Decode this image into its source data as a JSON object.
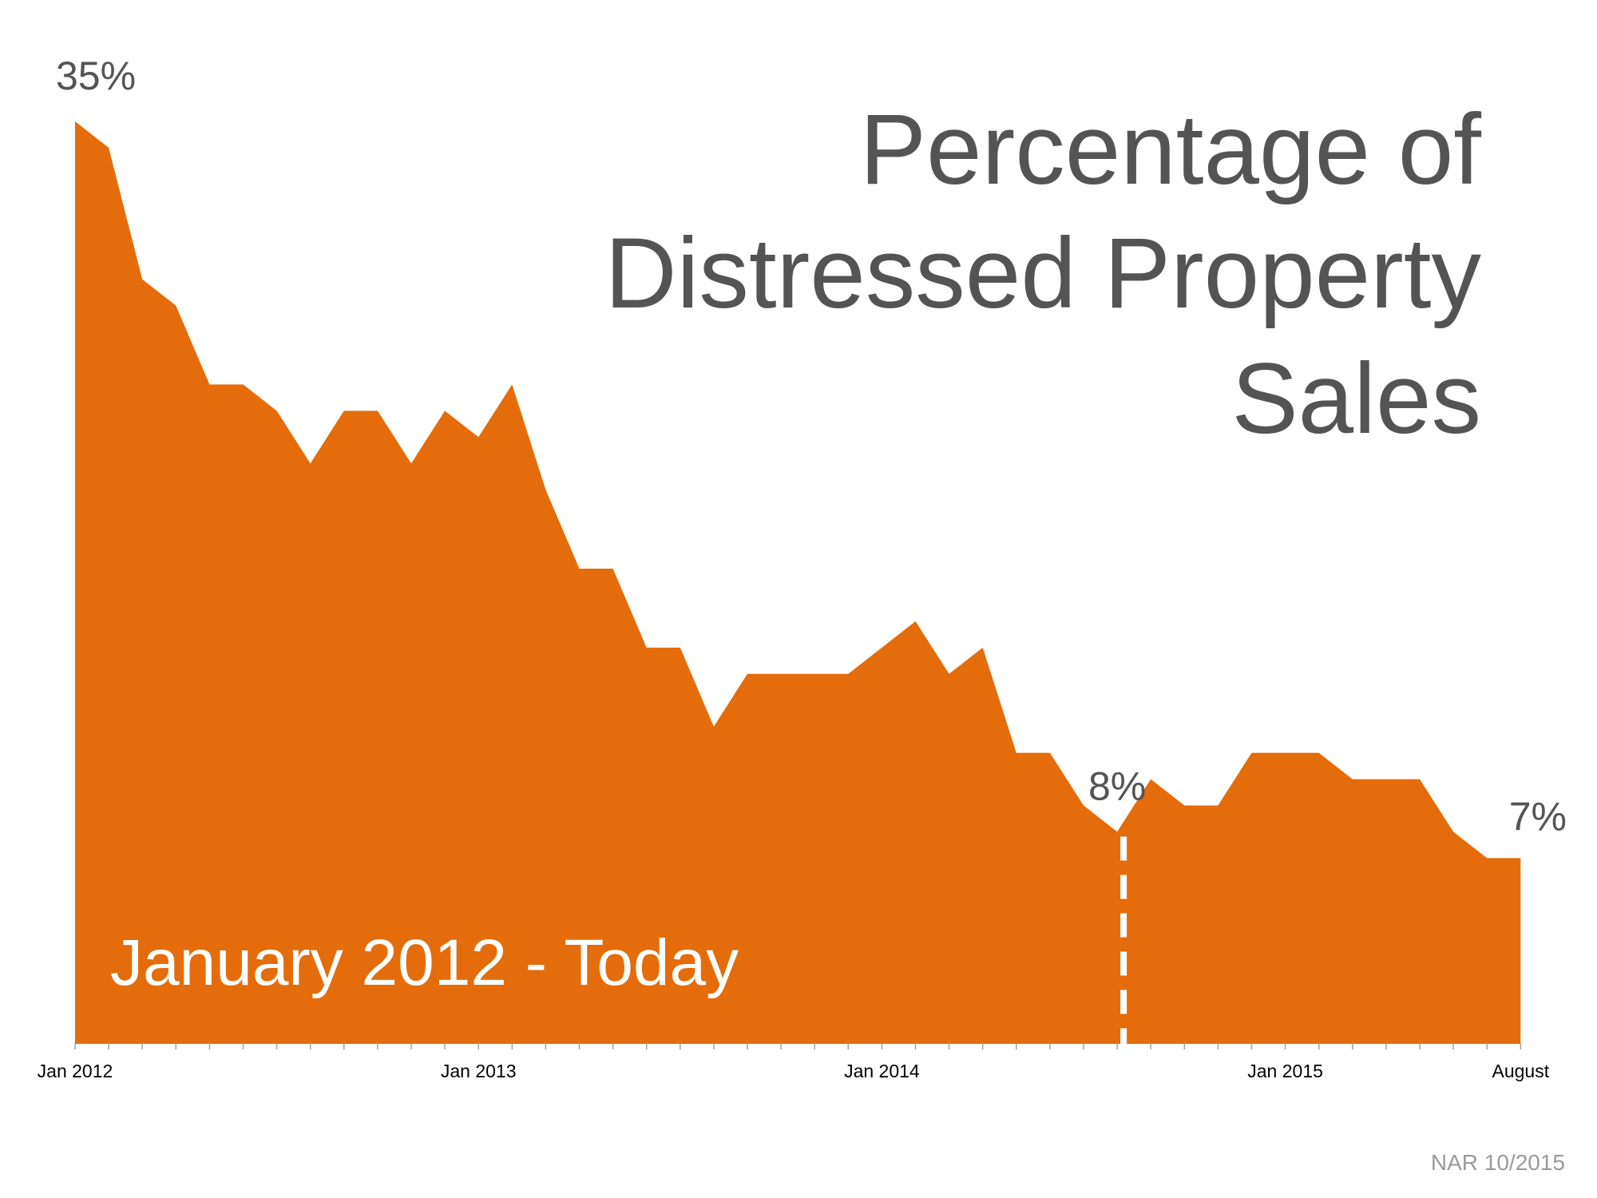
{
  "chart_data": {
    "type": "area",
    "title_lines": [
      "Percentage of",
      "Distressed Property",
      "Sales"
    ],
    "subtitle": "January 2012 - Today",
    "source": "NAR 10/2015",
    "xlabel": "",
    "ylabel": "",
    "x_tick_labels": [
      "Jan 2012",
      "Jan 2013",
      "Jan 2014",
      "Jan 2015",
      "August"
    ],
    "x_tick_label_index": [
      0,
      12,
      24,
      36,
      43
    ],
    "n_points": 44,
    "ylim": [
      0,
      35
    ],
    "values": [
      35,
      34,
      29,
      28,
      25,
      25,
      24,
      22,
      24,
      24,
      22,
      24,
      23,
      25,
      21,
      18,
      18,
      15,
      15,
      12,
      14,
      14,
      14,
      14,
      15,
      16,
      14,
      15,
      11,
      11,
      9,
      8,
      10,
      9,
      9,
      11,
      11,
      11,
      10,
      10,
      10,
      8,
      7,
      7
    ],
    "annotations": [
      {
        "index": 0,
        "text": "35%"
      },
      {
        "index": 31,
        "text": "8%"
      },
      {
        "index": 43,
        "text": "7%"
      }
    ],
    "marker_index": 31,
    "colors": {
      "fill": "#E46C0A",
      "text": "#545454",
      "axis": "#E46C0A",
      "source": "#9A9A9A"
    },
    "grid": false,
    "legend": "none"
  }
}
